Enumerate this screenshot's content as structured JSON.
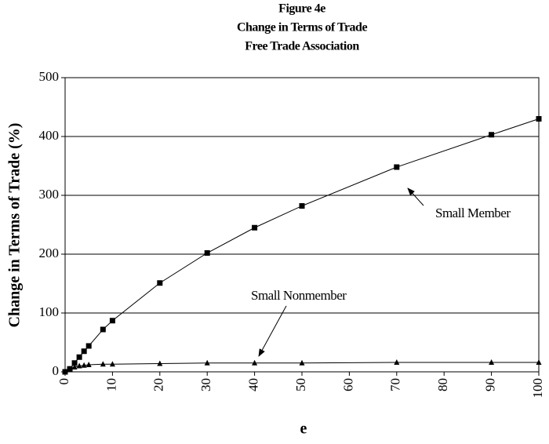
{
  "chart_data": {
    "type": "line",
    "title": [
      "Figure 4e",
      "Change in Terms of Trade",
      "Free Trade Association"
    ],
    "x_label": "e",
    "y_label": "Change in Terms of Trade (%)",
    "x": [
      0,
      1,
      2,
      3,
      4,
      5,
      8,
      10,
      20,
      30,
      40,
      50,
      70,
      90,
      100
    ],
    "series": [
      {
        "name": "Small Member",
        "color": "#000000",
        "marker": "square",
        "values": [
          0,
          5,
          15,
          25,
          35,
          44,
          72,
          87,
          151,
          202,
          245,
          282,
          348,
          403,
          430
        ]
      },
      {
        "name": "Small Nonmember",
        "color": "#000000",
        "marker": "triangle",
        "values": [
          0,
          5,
          8,
          10,
          11,
          12,
          13,
          13,
          14,
          15,
          15,
          15,
          16,
          16,
          16
        ]
      }
    ],
    "xlim": [
      0,
      100
    ],
    "xticks": [
      0,
      10,
      20,
      30,
      40,
      50,
      60,
      70,
      80,
      90,
      100
    ],
    "ylim": [
      0,
      500
    ],
    "yticks": [
      0,
      100,
      200,
      300,
      400,
      500
    ],
    "grid": true
  }
}
